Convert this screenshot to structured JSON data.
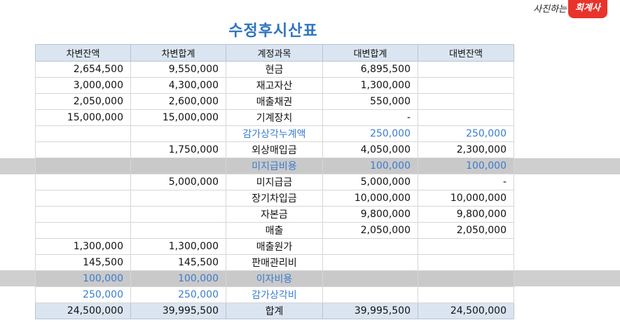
{
  "title": "수정후시산표",
  "logo": {
    "pre": "사진하는",
    "brand": "회계사"
  },
  "headers": [
    "차변잔액",
    "차변합계",
    "계정과목",
    "대변합계",
    "대변잔액"
  ],
  "rows": [
    {
      "cells": [
        "2,654,500",
        "9,550,000",
        "현금",
        "6,895,500",
        ""
      ]
    },
    {
      "cells": [
        "3,000,000",
        "4,300,000",
        "재고자산",
        "1,300,000",
        ""
      ]
    },
    {
      "cells": [
        "2,050,000",
        "2,600,000",
        "매출채권",
        "550,000",
        ""
      ]
    },
    {
      "cells": [
        "15,000,000",
        "15,000,000",
        "기계장치",
        "-",
        ""
      ]
    },
    {
      "cells": [
        "",
        "",
        "감가상각누계액",
        "250,000",
        "250,000"
      ],
      "adj": true
    },
    {
      "cells": [
        "",
        "1,750,000",
        "외상매입금",
        "4,050,000",
        "2,300,000"
      ]
    },
    {
      "cells": [
        "",
        "",
        "미지급비용",
        "100,000",
        "100,000"
      ],
      "adj": true,
      "highlight": true
    },
    {
      "cells": [
        "",
        "5,000,000",
        "미지급금",
        "5,000,000",
        "-"
      ]
    },
    {
      "cells": [
        "",
        "",
        "장기차입금",
        "10,000,000",
        "10,000,000"
      ]
    },
    {
      "cells": [
        "",
        "",
        "자본금",
        "9,800,000",
        "9,800,000"
      ]
    },
    {
      "cells": [
        "",
        "",
        "매출",
        "2,050,000",
        "2,050,000"
      ]
    },
    {
      "cells": [
        "1,300,000",
        "1,300,000",
        "매출원가",
        "",
        ""
      ]
    },
    {
      "cells": [
        "145,500",
        "145,500",
        "판매관리비",
        "",
        ""
      ]
    },
    {
      "cells": [
        "100,000",
        "100,000",
        "이자비용",
        "",
        ""
      ],
      "adj": true,
      "highlight": true
    },
    {
      "cells": [
        "250,000",
        "250,000",
        "감가상각비",
        "",
        ""
      ],
      "adj": true
    }
  ],
  "total": [
    "24,500,000",
    "39,995,500",
    "합계",
    "39,995,500",
    "24,500,000"
  ]
}
